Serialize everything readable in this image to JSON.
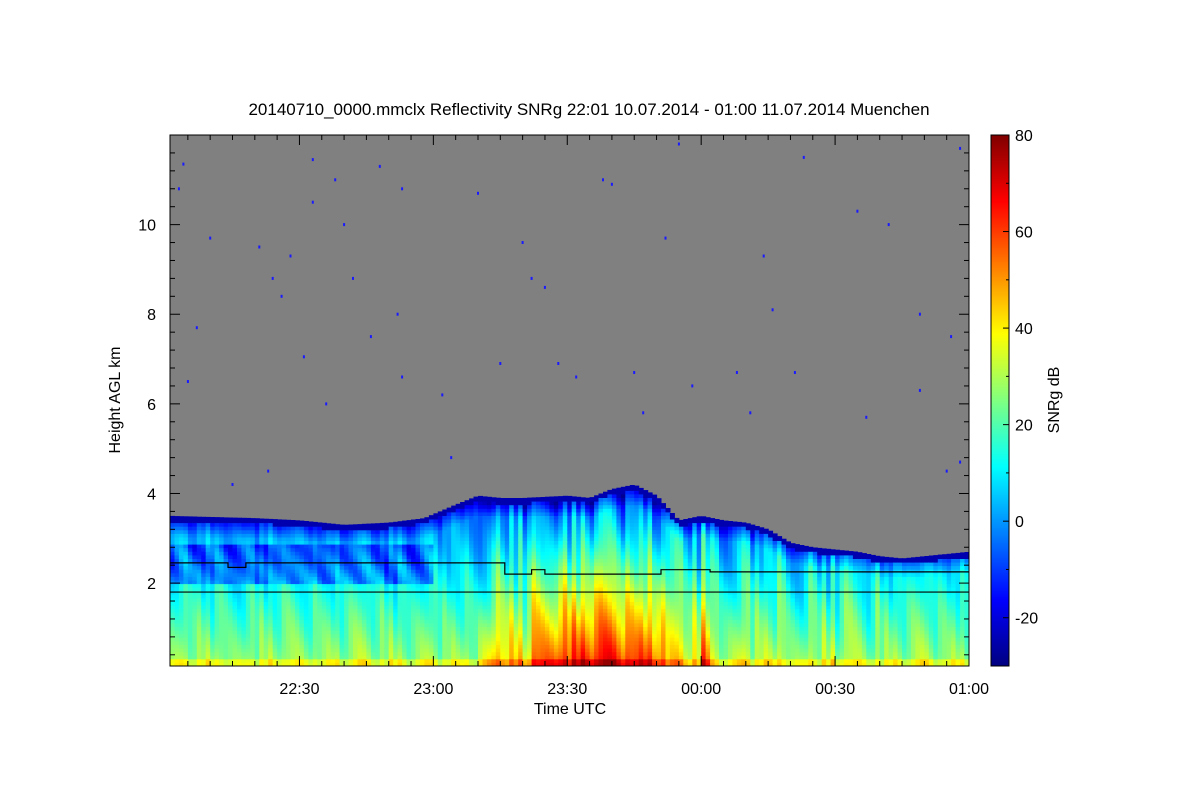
{
  "chart_data": {
    "type": "heatmap",
    "title": "20140710_0000.mmclx Reflectivity SNRg   22:01 10.07.2014 - 01:00 11.07.2014 Muenchen",
    "xlabel": "Time UTC",
    "ylabel": "Height AGL km",
    "colorbar_label": "SNRg dB",
    "x_start_min": -119,
    "x_end_min": 60,
    "xlim_labels": [
      "22:01",
      "01:00"
    ],
    "ylim": [
      0.15,
      12
    ],
    "x_ticks": [
      {
        "min": -90,
        "label": "22:30"
      },
      {
        "min": -60,
        "label": "23:00"
      },
      {
        "min": -30,
        "label": "23:30"
      },
      {
        "min": 0,
        "label": "00:00"
      },
      {
        "min": 30,
        "label": "00:30"
      },
      {
        "min": 60,
        "label": "01:00"
      }
    ],
    "y_ticks": [
      2,
      4,
      6,
      8,
      10
    ],
    "colorbar_range": [
      -30,
      80
    ],
    "colorbar_ticks": [
      -20,
      0,
      20,
      40,
      60,
      80
    ],
    "no_signal_color": "#808080",
    "colormap": [
      "#000080",
      "#0000ff",
      "#0080ff",
      "#00ffff",
      "#80ff80",
      "#ffff00",
      "#ff8000",
      "#ff0000",
      "#800000"
    ],
    "cloud_top_km": [
      [
        -119,
        3.5
      ],
      [
        -100,
        3.45
      ],
      [
        -90,
        3.4
      ],
      [
        -80,
        3.3
      ],
      [
        -70,
        3.35
      ],
      [
        -62,
        3.45
      ],
      [
        -55,
        3.75
      ],
      [
        -50,
        3.95
      ],
      [
        -45,
        3.9
      ],
      [
        -40,
        3.9
      ],
      [
        -30,
        3.95
      ],
      [
        -25,
        3.9
      ],
      [
        -20,
        4.1
      ],
      [
        -15,
        4.2
      ],
      [
        -10,
        3.95
      ],
      [
        -5,
        3.4
      ],
      [
        0,
        3.5
      ],
      [
        5,
        3.4
      ],
      [
        10,
        3.35
      ],
      [
        15,
        3.2
      ],
      [
        20,
        2.9
      ],
      [
        25,
        2.8
      ],
      [
        30,
        2.75
      ],
      [
        35,
        2.7
      ],
      [
        40,
        2.6
      ],
      [
        45,
        2.55
      ],
      [
        50,
        2.6
      ],
      [
        55,
        2.65
      ],
      [
        60,
        2.7
      ]
    ],
    "upper_line_km": [
      [
        -119,
        2.45
      ],
      [
        -107,
        2.45
      ],
      [
        -106,
        2.35
      ],
      [
        -103,
        2.35
      ],
      [
        -102,
        2.45
      ],
      [
        -77,
        2.45
      ],
      [
        -60,
        2.45
      ],
      [
        -45,
        2.45
      ],
      [
        -44,
        2.2
      ],
      [
        -40,
        2.2
      ],
      [
        -38,
        2.3
      ],
      [
        -35,
        2.2
      ],
      [
        -10,
        2.2
      ],
      [
        -9,
        2.3
      ],
      [
        0,
        2.3
      ],
      [
        2,
        2.25
      ],
      [
        60,
        2.25
      ]
    ],
    "lower_line_km": 1.8,
    "noise_specks": [
      [
        -117,
        10.8
      ],
      [
        -116,
        11.35
      ],
      [
        -115,
        6.5
      ],
      [
        -113,
        7.7
      ],
      [
        -110,
        9.7
      ],
      [
        -105,
        4.2
      ],
      [
        -99,
        9.5
      ],
      [
        -97,
        4.5
      ],
      [
        -96,
        8.8
      ],
      [
        -94,
        8.4
      ],
      [
        -92,
        9.3
      ],
      [
        -89,
        7.05
      ],
      [
        -87,
        10.5
      ],
      [
        -87,
        11.45
      ],
      [
        -84,
        6.0
      ],
      [
        -82,
        11.0
      ],
      [
        -80,
        10.0
      ],
      [
        -78,
        8.8
      ],
      [
        -74,
        7.5
      ],
      [
        -72,
        11.3
      ],
      [
        -68,
        8.0
      ],
      [
        -67,
        10.8
      ],
      [
        -67,
        6.6
      ],
      [
        -58,
        6.2
      ],
      [
        -56,
        4.8
      ],
      [
        -50,
        10.7
      ],
      [
        -45,
        6.9
      ],
      [
        -40,
        9.6
      ],
      [
        -38,
        8.8
      ],
      [
        -35,
        8.6
      ],
      [
        -32,
        6.9
      ],
      [
        -28,
        6.6
      ],
      [
        -22,
        11.0
      ],
      [
        -20,
        10.9
      ],
      [
        -15,
        6.7
      ],
      [
        -13,
        5.8
      ],
      [
        -8,
        9.7
      ],
      [
        -5,
        11.8
      ],
      [
        -2,
        6.4
      ],
      [
        8,
        6.7
      ],
      [
        11,
        5.8
      ],
      [
        14,
        9.3
      ],
      [
        16,
        8.1
      ],
      [
        21,
        6.7
      ],
      [
        23,
        11.5
      ],
      [
        35,
        10.3
      ],
      [
        37,
        5.7
      ],
      [
        42,
        10.0
      ],
      [
        49,
        8.0
      ],
      [
        49,
        6.3
      ],
      [
        55,
        4.5
      ],
      [
        56,
        7.5
      ],
      [
        58,
        4.7
      ],
      [
        58,
        11.7
      ]
    ]
  }
}
